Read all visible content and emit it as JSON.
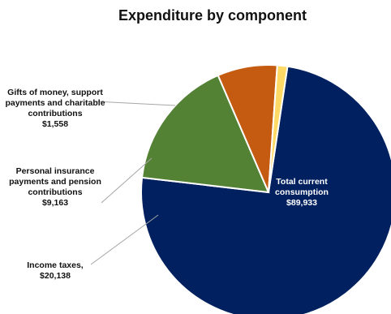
{
  "chart_data": {
    "type": "pie",
    "title": "Expenditure by component",
    "legend": "none",
    "slices": [
      {
        "label_lines": [
          "Total current",
          "consumption"
        ],
        "value_label": "$89,933",
        "value": 89933,
        "color": "#002060"
      },
      {
        "label_lines": [
          "Income taxes,"
        ],
        "value_label": "$20,138",
        "value": 20138,
        "color": "#548235"
      },
      {
        "label_lines": [
          "Personal insurance",
          "payments and pension",
          "contributions"
        ],
        "value_label": "$9,163",
        "value": 9163,
        "color": "#C55A11"
      },
      {
        "label_lines": [
          "Gifts of money, support",
          "payments and charitable",
          "contributions"
        ],
        "value_label": "$1,558",
        "value": 1558,
        "color": "#FFD966"
      }
    ]
  }
}
